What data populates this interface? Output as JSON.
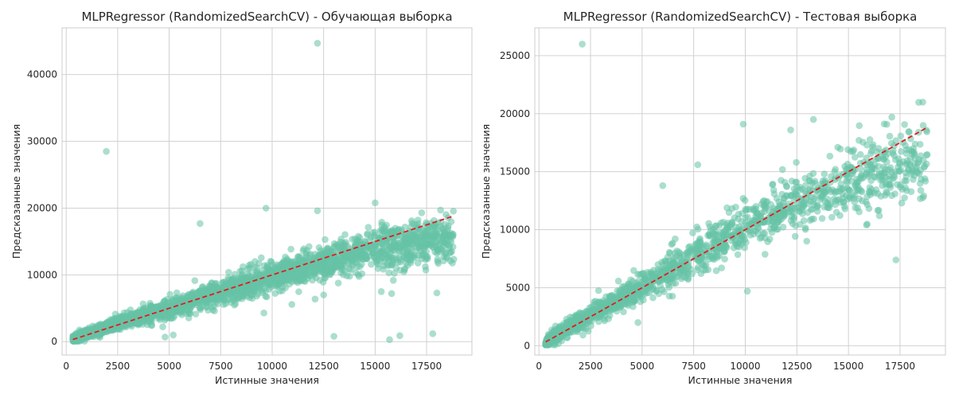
{
  "colors": {
    "point": "#66c2a5",
    "identity_line": "#e41a1c",
    "grid": "#cccccc",
    "spine": "#cccccc",
    "background": "#ffffff"
  },
  "chart_data": [
    {
      "type": "scatter",
      "title": "MLPRegressor (RandomizedSearchCV) - Обучающая выборка",
      "xlabel": "Истинные значения",
      "ylabel": "Предсказанные значения",
      "xlim": [
        -200,
        19700
      ],
      "ylim": [
        -2000,
        47000
      ],
      "xticks": [
        0,
        2500,
        5000,
        7500,
        10000,
        12500,
        15000,
        17500
      ],
      "yticks": [
        0,
        10000,
        20000,
        30000,
        40000
      ],
      "xtick_labels": [
        "0",
        "2500",
        "5000",
        "7500",
        "10000",
        "12500",
        "15000",
        "17500"
      ],
      "ytick_labels": [
        "0",
        "10000",
        "20000",
        "30000",
        "40000"
      ],
      "grid": true,
      "identity_line": {
        "style": "dashed",
        "x": [
          326,
          18823
        ],
        "y": [
          326,
          18823
        ]
      },
      "point_alpha": 0.55,
      "trend_points": [
        [
          326,
          350
        ],
        [
          2500,
          2800
        ],
        [
          5000,
          5000
        ],
        [
          7500,
          7400
        ],
        [
          10000,
          9700
        ],
        [
          12500,
          11900
        ],
        [
          15000,
          13800
        ],
        [
          17500,
          15300
        ],
        [
          18823,
          15700
        ]
      ],
      "outliers": [
        [
          1950,
          28500
        ],
        [
          12200,
          44700
        ],
        [
          5200,
          1000
        ],
        [
          7200,
          4600
        ],
        [
          9600,
          4300
        ],
        [
          12500,
          7000
        ],
        [
          15300,
          7500
        ],
        [
          15800,
          7200
        ],
        [
          16200,
          900
        ],
        [
          15700,
          300
        ],
        [
          18000,
          7300
        ],
        [
          17800,
          1200
        ],
        [
          13000,
          800
        ],
        [
          4800,
          700
        ],
        [
          6500,
          17700
        ],
        [
          9700,
          20000
        ],
        [
          12200,
          19600
        ],
        [
          15000,
          20800
        ]
      ]
    },
    {
      "type": "scatter",
      "title": "MLPRegressor (RandomizedSearchCV) - Тестовая выборка",
      "xlabel": "Истинные значения",
      "ylabel": "Предсказанные значения",
      "xlim": [
        -200,
        19700
      ],
      "ylim": [
        -800,
        27400
      ],
      "xticks": [
        0,
        2500,
        5000,
        7500,
        10000,
        12500,
        15000,
        17500
      ],
      "yticks": [
        0,
        5000,
        10000,
        15000,
        20000,
        25000
      ],
      "xtick_labels": [
        "0",
        "2500",
        "5000",
        "7500",
        "10000",
        "12500",
        "15000",
        "17500"
      ],
      "ytick_labels": [
        "0",
        "5000",
        "10000",
        "15000",
        "20000",
        "25000"
      ],
      "grid": true,
      "identity_line": {
        "style": "dashed",
        "x": [
          326,
          18823
        ],
        "y": [
          326,
          18823
        ]
      },
      "point_alpha": 0.55,
      "trend_points": [
        [
          326,
          350
        ],
        [
          2500,
          2700
        ],
        [
          5000,
          5100
        ],
        [
          7500,
          7700
        ],
        [
          10000,
          10200
        ],
        [
          12500,
          12500
        ],
        [
          15000,
          14100
        ],
        [
          17500,
          15500
        ],
        [
          18823,
          16000
        ]
      ],
      "outliers": [
        [
          2100,
          26000
        ],
        [
          9900,
          19100
        ],
        [
          13300,
          19500
        ],
        [
          12200,
          18600
        ],
        [
          17100,
          19700
        ],
        [
          18600,
          21000
        ],
        [
          17300,
          7400
        ],
        [
          10100,
          4700
        ],
        [
          4800,
          2000
        ],
        [
          6000,
          13800
        ],
        [
          7700,
          15600
        ],
        [
          16500,
          11200
        ],
        [
          18700,
          14400
        ]
      ]
    }
  ]
}
